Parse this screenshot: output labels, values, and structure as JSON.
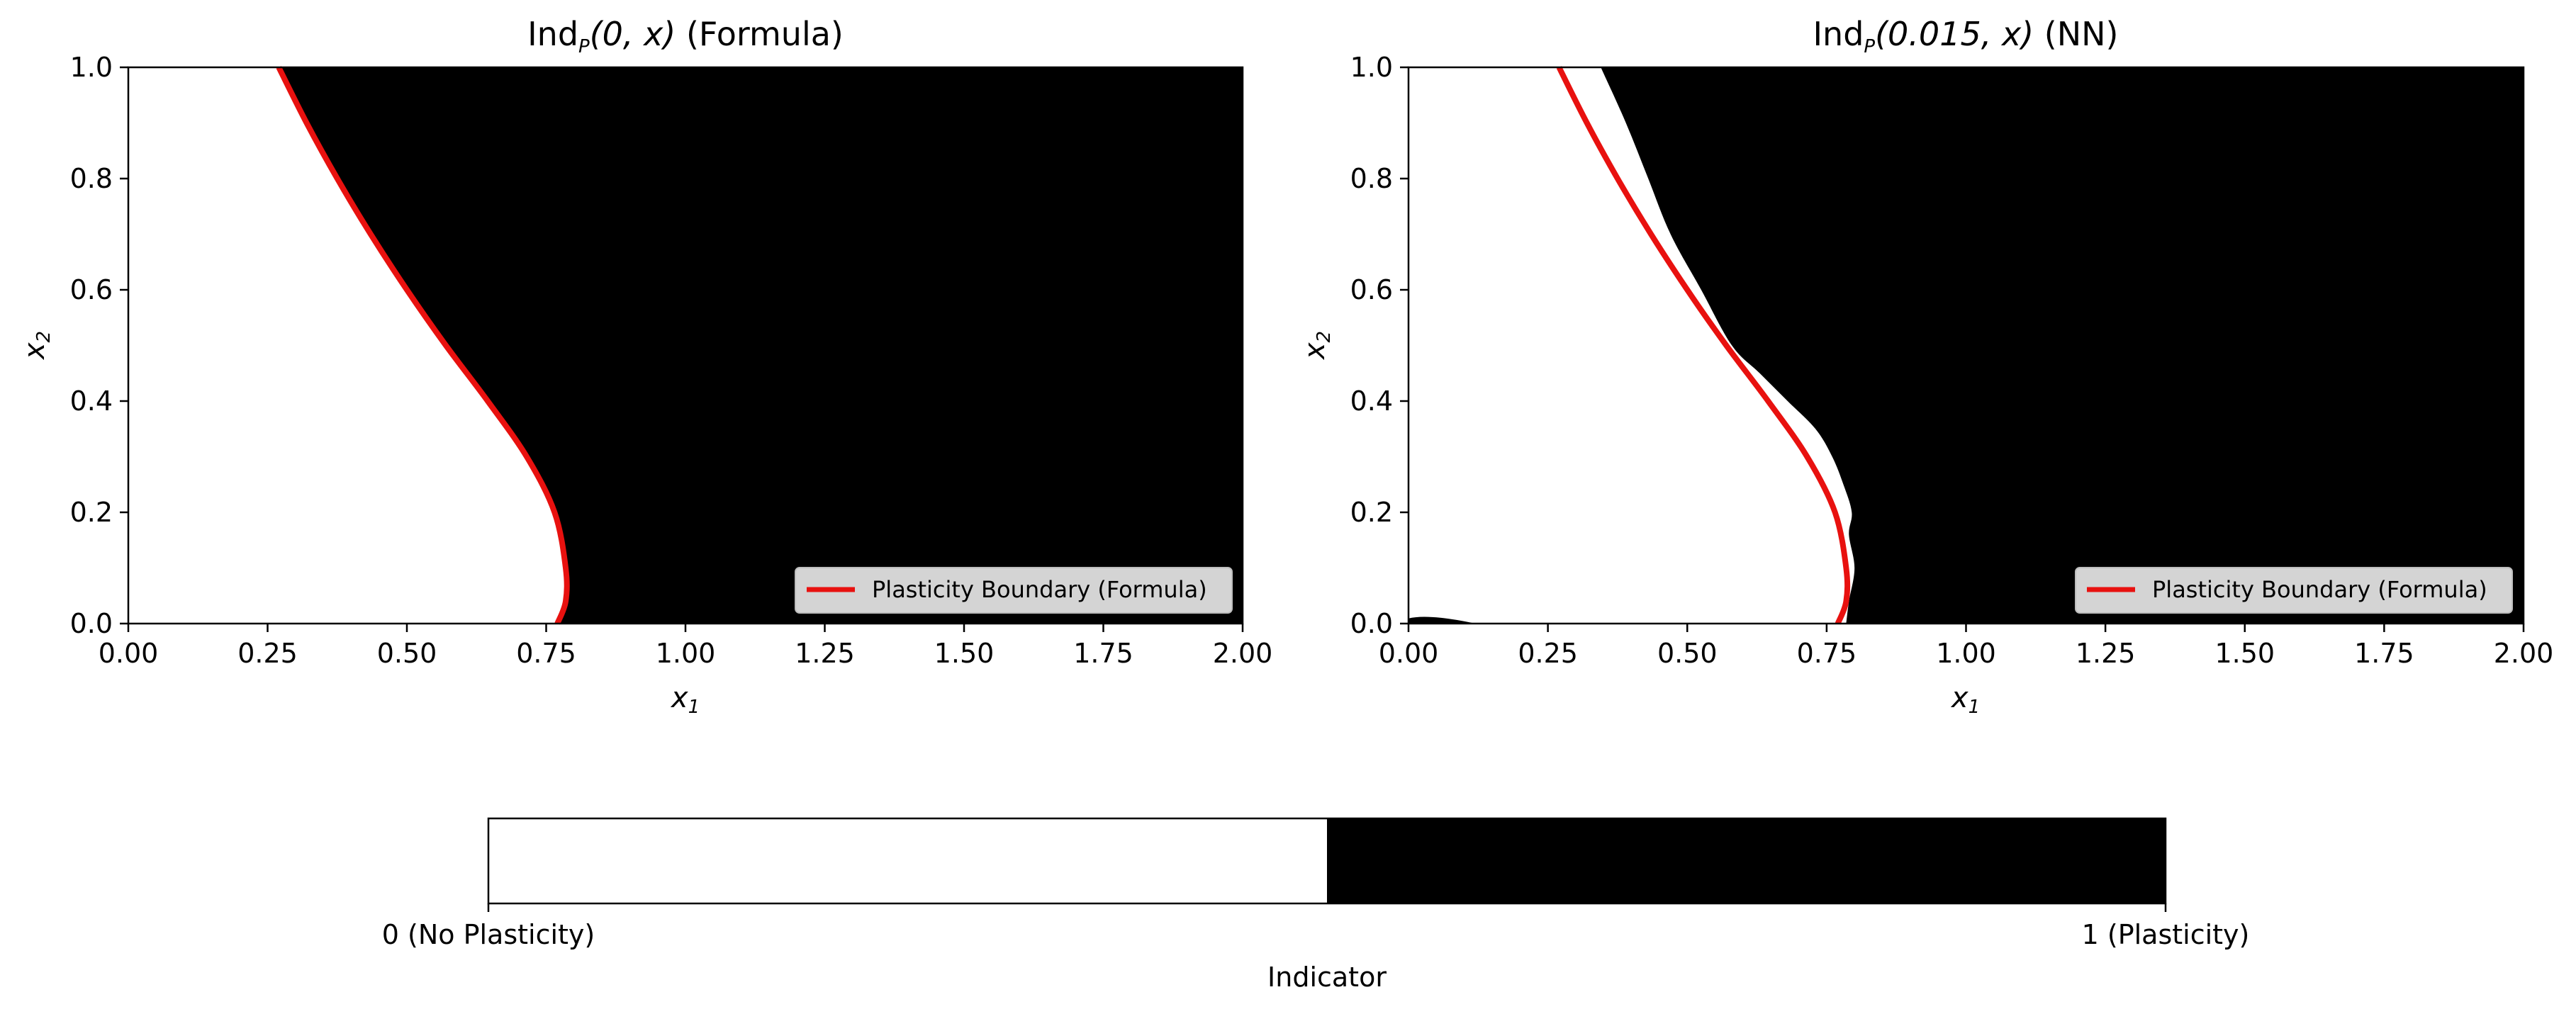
{
  "figure": {
    "colors": {
      "region_plastic": "#000000",
      "region_elastic": "#ffffff",
      "boundary": "#e8110f",
      "legend_bg": "#d4d4d4"
    }
  },
  "chart_data": [
    {
      "type": "heatmap",
      "title_main": "Ind",
      "title_sub": "P",
      "title_args": "(0, x)",
      "title_note": " (Formula)",
      "xlabel": "x",
      "xlabel_sub": "1",
      "ylabel": "x",
      "ylabel_sub": "2",
      "xlim": [
        0,
        2
      ],
      "ylim": [
        0,
        1
      ],
      "xticks": [
        "0.00",
        "0.25",
        "0.50",
        "0.75",
        "1.00",
        "1.25",
        "1.50",
        "1.75",
        "2.00"
      ],
      "yticks": [
        "0.0",
        "0.2",
        "0.4",
        "0.6",
        "0.8",
        "1.0"
      ],
      "legend": {
        "label": "Plasticity Boundary (Formula)",
        "loc": "lower right"
      },
      "boundary_formula": {
        "x2": [
          0.0,
          0.04,
          0.1,
          0.2,
          0.3,
          0.4,
          0.5,
          0.6,
          0.7,
          0.8,
          0.9,
          1.0
        ],
        "x1": [
          0.77,
          0.785,
          0.785,
          0.765,
          0.715,
          0.645,
          0.57,
          0.5,
          0.435,
          0.375,
          0.32,
          0.27
        ]
      },
      "plastic_region_boundary": {
        "x2": [
          0.0,
          0.04,
          0.1,
          0.2,
          0.3,
          0.4,
          0.5,
          0.6,
          0.7,
          0.8,
          0.9,
          1.0
        ],
        "x1": [
          0.77,
          0.785,
          0.785,
          0.765,
          0.715,
          0.645,
          0.57,
          0.5,
          0.435,
          0.375,
          0.32,
          0.27
        ]
      }
    },
    {
      "type": "heatmap",
      "title_main": "Ind",
      "title_sub": "P",
      "title_args": "(0.015, x)",
      "title_note": " (NN)",
      "xlabel": "x",
      "xlabel_sub": "1",
      "ylabel": "x",
      "ylabel_sub": "2",
      "xlim": [
        0,
        2
      ],
      "ylim": [
        0,
        1
      ],
      "xticks": [
        "0.00",
        "0.25",
        "0.50",
        "0.75",
        "1.00",
        "1.25",
        "1.50",
        "1.75",
        "2.00"
      ],
      "yticks": [
        "0.0",
        "0.2",
        "0.4",
        "0.6",
        "0.8",
        "1.0"
      ],
      "legend": {
        "label": "Plasticity Boundary (Formula)",
        "loc": "lower right"
      },
      "boundary_formula": {
        "x2": [
          0.0,
          0.04,
          0.1,
          0.2,
          0.3,
          0.4,
          0.5,
          0.6,
          0.7,
          0.8,
          0.9,
          1.0
        ],
        "x1": [
          0.77,
          0.785,
          0.785,
          0.765,
          0.715,
          0.645,
          0.57,
          0.5,
          0.435,
          0.375,
          0.32,
          0.27
        ]
      },
      "plastic_region_boundary": {
        "x2": [
          0.0,
          0.04,
          0.1,
          0.16,
          0.2,
          0.25,
          0.3,
          0.35,
          0.4,
          0.45,
          0.5,
          0.6,
          0.7,
          0.8,
          0.9,
          1.0
        ],
        "x1": [
          0.785,
          0.79,
          0.8,
          0.79,
          0.795,
          0.78,
          0.76,
          0.73,
          0.68,
          0.63,
          0.58,
          0.525,
          0.47,
          0.43,
          0.39,
          0.345
        ]
      },
      "artifact_blob": {
        "x1": [
          0.0,
          0.12
        ],
        "x2_max": 0.013
      }
    }
  ],
  "colorbar": {
    "label": "Indicator",
    "ticks": [
      "0 (No Plasticity)",
      "1 (Plasticity)"
    ],
    "values": [
      0,
      1
    ]
  }
}
